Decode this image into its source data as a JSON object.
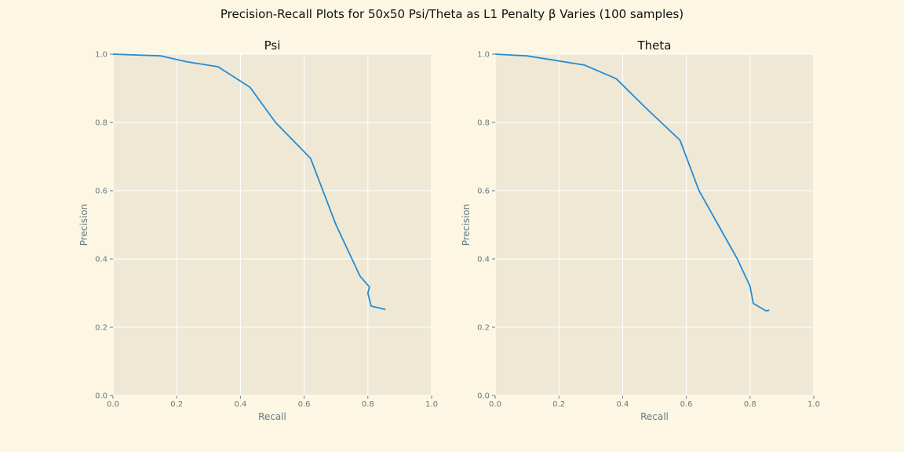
{
  "figure": {
    "suptitle": "Precision-Recall Plots for 50x50 Psi/Theta as L1 Penalty β Varies (100 samples)"
  },
  "colors": {
    "figure_bg": "#fdf6e3",
    "axes_bg": "#eee8d5",
    "grid": "#ffffff",
    "line": "#268bd2",
    "tick_text": "#657b83",
    "label_text": "#657b83",
    "title_text": "#111111"
  },
  "chart_data": [
    {
      "type": "line",
      "title": "Psi",
      "xlabel": "Recall",
      "ylabel": "Precision",
      "xlim": [
        0,
        1
      ],
      "ylim": [
        0,
        1
      ],
      "xticks": [
        "0.0",
        "0.2",
        "0.4",
        "0.6",
        "0.8",
        "1.0"
      ],
      "yticks": [
        "0.0",
        "0.2",
        "0.4",
        "0.6",
        "0.8",
        "1.0"
      ],
      "grid": true,
      "series": [
        {
          "x": [
            0.0,
            0.15,
            0.23,
            0.33,
            0.43,
            0.51,
            0.62,
            0.7,
            0.775,
            0.805,
            0.8,
            0.81,
            0.855
          ],
          "y": [
            1.0,
            0.995,
            0.978,
            0.963,
            0.903,
            0.8,
            0.695,
            0.5,
            0.35,
            0.318,
            0.3,
            0.262,
            0.252
          ]
        }
      ]
    },
    {
      "type": "line",
      "title": "Theta",
      "xlabel": "Recall",
      "ylabel": "Precision",
      "xlim": [
        0,
        1
      ],
      "ylim": [
        0,
        1
      ],
      "xticks": [
        "0.0",
        "0.2",
        "0.4",
        "0.6",
        "0.8",
        "1.0"
      ],
      "yticks": [
        "0.0",
        "0.2",
        "0.4",
        "0.6",
        "0.8",
        "1.0"
      ],
      "grid": true,
      "series": [
        {
          "x": [
            0.0,
            0.1,
            0.28,
            0.38,
            0.47,
            0.58,
            0.64,
            0.7,
            0.76,
            0.8,
            0.81,
            0.85,
            0.86
          ],
          "y": [
            1.0,
            0.995,
            0.968,
            0.928,
            0.845,
            0.748,
            0.6,
            0.5,
            0.4,
            0.32,
            0.27,
            0.248,
            0.25
          ]
        }
      ]
    }
  ]
}
